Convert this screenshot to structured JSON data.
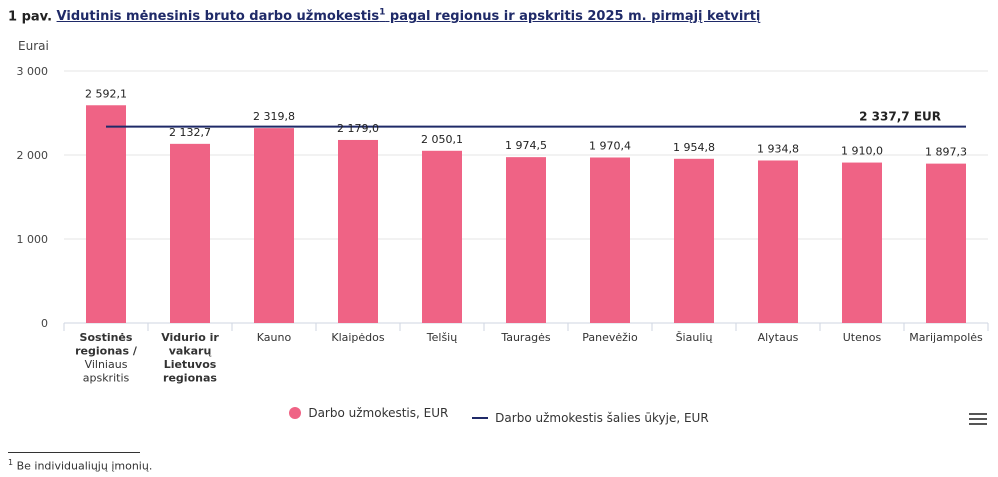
{
  "figure": {
    "number": "1 pav.",
    "title_main": "Vidutinis mėnesinis bruto darbo užmokestis",
    "title_sup": "1",
    "title_rest": " pagal regionus ir apskritis 2025 m. pirmąjį ketvirtį"
  },
  "colors": {
    "bar": "#ef6385",
    "avg_line": "#1f2a68",
    "grid": "#e6e6e6"
  },
  "chart_data": {
    "type": "bar",
    "title": "Vidutinis mėnesinis bruto darbo užmokestis pagal regionus ir apskritis 2025 m. pirmąjį ketvirtį",
    "ylabel": "Eurai",
    "ylim": [
      0,
      3000
    ],
    "yticks": [
      0,
      1000,
      2000,
      3000
    ],
    "ytick_labels": [
      "0",
      "1 000",
      "2 000",
      "3 000"
    ],
    "categories": [
      [
        "Sostinės",
        "regionas /",
        "Vilniaus",
        "apskritis"
      ],
      [
        "Vidurio ir",
        "vakarų",
        "Lietuvos",
        "regionas"
      ],
      [
        "Kauno"
      ],
      [
        "Klaipėdos"
      ],
      [
        "Telšių"
      ],
      [
        "Tauragės"
      ],
      [
        "Panevėžio"
      ],
      [
        "Šiaulių"
      ],
      [
        "Alytaus"
      ],
      [
        "Utenos"
      ],
      [
        "Marijampolės"
      ]
    ],
    "bold_category_lines": [
      [
        0,
        1
      ],
      [
        0,
        1,
        2,
        3
      ]
    ],
    "values": [
      2592.1,
      2132.7,
      2319.8,
      2179.0,
      2050.1,
      1974.5,
      1970.4,
      1954.8,
      1934.8,
      1910.0,
      1897.3
    ],
    "value_labels": [
      "2 592,1",
      "2 132,7",
      "2 319,8",
      "2 179,0",
      "2 050,1",
      "1 974,5",
      "1 970,4",
      "1 954,8",
      "1 934,8",
      "1 910,0",
      "1 897,3"
    ],
    "reference_line": {
      "value": 2337.7,
      "label": "2 337,7 EUR"
    },
    "legend": [
      "Darbo užmokestis, EUR",
      "Darbo užmokestis šalies ūkyje, EUR"
    ]
  },
  "footnote": {
    "sup": "1",
    "text": " Be individualiųjų įmonių."
  }
}
